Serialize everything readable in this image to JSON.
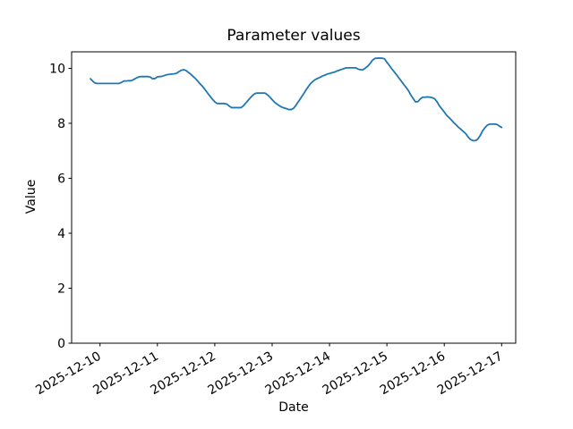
{
  "chart_data": {
    "type": "line",
    "title": "Parameter values",
    "xlabel": "Date",
    "ylabel": "Value",
    "legend": null,
    "grid": false,
    "line_color": "#1f77b4",
    "axis_color": "#000000",
    "background_color": "#ffffff",
    "x_tick_labels": [
      "2025-12-10",
      "2025-12-11",
      "2025-12-12",
      "2025-12-13",
      "2025-12-14",
      "2025-12-15",
      "2025-12-16",
      "2025-12-17"
    ],
    "x_tick_day_offsets": [
      0,
      1,
      2,
      3,
      4,
      5,
      6,
      7
    ],
    "x_tick_rotation_deg": 30,
    "y_tick_labels": [
      "0",
      "2",
      "4",
      "6",
      "8",
      "10"
    ],
    "y_tick_values": [
      0,
      2,
      4,
      6,
      8,
      10
    ],
    "ylim": [
      0,
      10.6
    ],
    "xlim_day_offsets": [
      -0.495,
      7.245
    ],
    "series": [
      {
        "name": "parameter-values",
        "start": "2025-12-09T20:00",
        "end": "2025-12-17T00:00",
        "step_hours": 1,
        "start_day_offset": -0.1667,
        "n_points": 173,
        "values": [
          9.62,
          9.53,
          9.46,
          9.45,
          9.45,
          9.45,
          9.45,
          9.45,
          9.45,
          9.45,
          9.45,
          9.45,
          9.45,
          9.49,
          9.54,
          9.54,
          9.55,
          9.55,
          9.59,
          9.64,
          9.68,
          9.7,
          9.7,
          9.7,
          9.7,
          9.68,
          9.62,
          9.63,
          9.69,
          9.7,
          9.71,
          9.74,
          9.77,
          9.78,
          9.79,
          9.8,
          9.82,
          9.88,
          9.93,
          9.95,
          9.92,
          9.85,
          9.78,
          9.7,
          9.62,
          9.52,
          9.42,
          9.33,
          9.22,
          9.1,
          8.99,
          8.88,
          8.78,
          8.72,
          8.72,
          8.72,
          8.72,
          8.7,
          8.63,
          8.57,
          8.57,
          8.57,
          8.57,
          8.57,
          8.64,
          8.74,
          8.84,
          8.94,
          9.03,
          9.09,
          9.1,
          9.1,
          9.1,
          9.1,
          9.04,
          8.96,
          8.86,
          8.77,
          8.7,
          8.64,
          8.59,
          8.56,
          8.53,
          8.5,
          8.5,
          8.55,
          8.66,
          8.79,
          8.92,
          9.05,
          9.19,
          9.32,
          9.44,
          9.52,
          9.59,
          9.63,
          9.67,
          9.72,
          9.75,
          9.79,
          9.81,
          9.84,
          9.86,
          9.9,
          9.93,
          9.96,
          9.99,
          10.02,
          10.02,
          10.02,
          10.02,
          10.02,
          9.97,
          9.95,
          9.95,
          10.01,
          10.08,
          10.18,
          10.3,
          10.36,
          10.37,
          10.37,
          10.37,
          10.35,
          10.22,
          10.11,
          9.99,
          9.88,
          9.77,
          9.65,
          9.54,
          9.42,
          9.31,
          9.19,
          9.03,
          8.9,
          8.78,
          8.79,
          8.89,
          8.95,
          8.95,
          8.96,
          8.95,
          8.93,
          8.89,
          8.78,
          8.63,
          8.52,
          8.41,
          8.29,
          8.21,
          8.12,
          8.02,
          7.94,
          7.85,
          7.78,
          7.7,
          7.62,
          7.5,
          7.41,
          7.37,
          7.37,
          7.42,
          7.55,
          7.72,
          7.84,
          7.93,
          7.97,
          7.97,
          7.97,
          7.96,
          7.9,
          7.85
        ]
      }
    ]
  }
}
